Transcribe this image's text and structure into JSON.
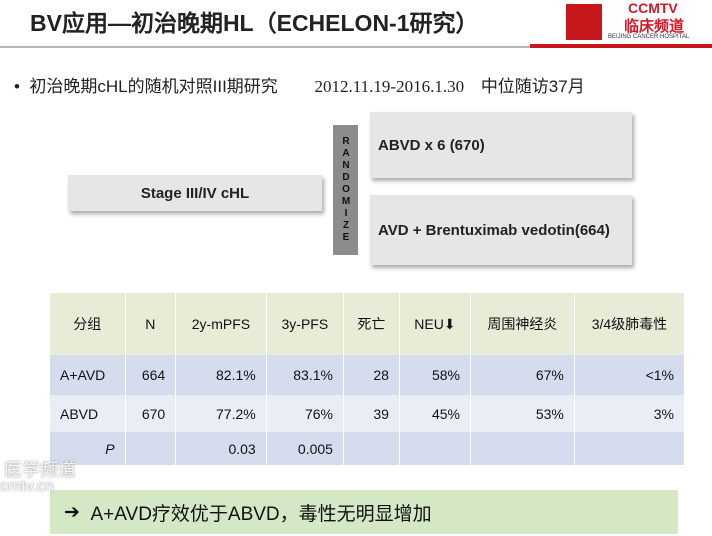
{
  "header": {
    "title": "BV应用—初治晚期HL（ECHELON-1研究）",
    "logo_brand": "CCMTV",
    "logo_channel": "临床频道",
    "logo_hospital": "BEIJING CANCER HOSPITAL"
  },
  "bullet": {
    "text": "初治晚期cHL的随机对照III期研究",
    "dates": "2012.11.19-2016.1.30",
    "followup": "中位随访37月"
  },
  "design": {
    "population": "Stage III/IV cHL",
    "randomize": "RANDOMIZE",
    "arms": [
      "ABVD x 6 (670)",
      "AVD + Brentuximab vedotin(664)"
    ]
  },
  "table": {
    "header": [
      "分组",
      "N",
      "2y-mPFS",
      "3y-PFS",
      "死亡",
      "NEU⬇",
      "周围神经炎",
      "3/4级肺毒性"
    ],
    "rows": [
      [
        "A+AVD",
        "664",
        "82.1%",
        "83.1%",
        "28",
        "58%",
        "67%",
        "<1%"
      ],
      [
        "ABVD",
        "670",
        "77.2%",
        "76%",
        "39",
        "45%",
        "53%",
        "3%"
      ],
      [
        "P",
        null,
        "0.03",
        "0.005",
        null,
        null,
        null,
        null
      ]
    ]
  },
  "conclusion": "A+AVD疗效优于ABVD，毒性无明显增加",
  "watermark": [
    "医学频道",
    "cmtv.cn"
  ]
}
